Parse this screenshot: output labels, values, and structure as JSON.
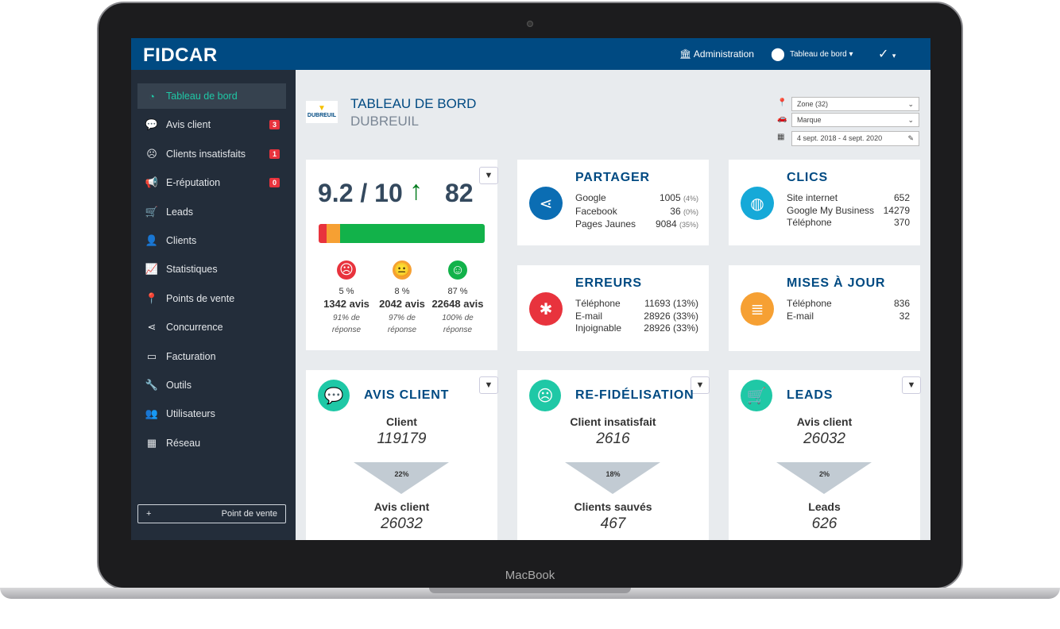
{
  "device": {
    "brand": "MacBook"
  },
  "topbar": {
    "logo": "FIDCAR",
    "admin": "Administration",
    "dashboard_menu": "Tableau de bord ▾",
    "user_menu": "▾"
  },
  "sidebar": {
    "items": [
      {
        "label": "Tableau de bord",
        "icon": "dashboard-icon",
        "glyph": "◔"
      },
      {
        "label": "Avis client",
        "icon": "comment-icon",
        "glyph": "💬",
        "badge": "3"
      },
      {
        "label": "Clients insatisfaits",
        "icon": "frown-icon",
        "glyph": "☹",
        "badge": "1"
      },
      {
        "label": "E-réputation",
        "icon": "bullhorn-icon",
        "glyph": "📢",
        "badge": "0"
      },
      {
        "label": "Leads",
        "icon": "cart-icon",
        "glyph": "🛒"
      },
      {
        "label": "Clients",
        "icon": "user-icon",
        "glyph": "👤"
      },
      {
        "label": "Statistiques",
        "icon": "chart-icon",
        "glyph": "📈"
      },
      {
        "label": "Points de vente",
        "icon": "map-marker-icon",
        "glyph": "📍"
      },
      {
        "label": "Concurrence",
        "icon": "share-icon",
        "glyph": "⋖"
      },
      {
        "label": "Facturation",
        "icon": "credit-card-icon",
        "glyph": "▭"
      },
      {
        "label": "Outils",
        "icon": "wrench-icon",
        "glyph": "🔧"
      },
      {
        "label": "Utilisateurs",
        "icon": "users-icon",
        "glyph": "👥"
      },
      {
        "label": "Réseau",
        "icon": "building-icon",
        "glyph": "▦"
      }
    ],
    "add_button": "Point de vente",
    "add_glyph": "+",
    "updates": "Mises à jour"
  },
  "header": {
    "title": "TABLEAU DE BORD",
    "subtitle": "DUBREUIL",
    "logo_text": "DUBREUIL"
  },
  "filters": {
    "zone": "Zone (32)",
    "brand": "Marque",
    "dates": "4 sept. 2018 - 4 sept. 2020"
  },
  "score": {
    "value": "9.2 / 10",
    "trend": "↑",
    "count": "82",
    "bar": {
      "negative": 5,
      "neutral": 8,
      "positive": 87
    },
    "columns": [
      {
        "pct": "5 %",
        "avis": "1342 avis",
        "resp": "91% de réponse",
        "color": "#e8333d",
        "face": "☹"
      },
      {
        "pct": "8 %",
        "avis": "2042 avis",
        "resp": "97% de réponse",
        "color": "#f6a033",
        "face": "😐"
      },
      {
        "pct": "87 %",
        "avis": "22648 avis",
        "resp": "100% de réponse",
        "color": "#12b24a",
        "face": "☺"
      }
    ]
  },
  "partager": {
    "title": "PARTAGER",
    "rows": [
      {
        "label": "Google",
        "value": "1005",
        "pct": "(4%)"
      },
      {
        "label": "Facebook",
        "value": "36",
        "pct": "(0%)"
      },
      {
        "label": "Pages Jaunes",
        "value": "9084",
        "pct": "(35%)"
      }
    ]
  },
  "clics": {
    "title": "CLICS",
    "rows": [
      {
        "label": "Site internet",
        "value": "652"
      },
      {
        "label": "Google My Business",
        "value": "14279"
      },
      {
        "label": "Téléphone",
        "value": "370"
      }
    ]
  },
  "erreurs": {
    "title": "ERREURS",
    "rows": [
      {
        "label": "Téléphone",
        "value": "11693 (13%)"
      },
      {
        "label": "E-mail",
        "value": "28926 (33%)"
      },
      {
        "label": "Injoignable",
        "value": "28926 (33%)"
      }
    ]
  },
  "maj": {
    "title": "MISES À JOUR",
    "rows": [
      {
        "label": "Téléphone",
        "value": "836"
      },
      {
        "label": "E-mail",
        "value": "32"
      }
    ]
  },
  "funnels": [
    {
      "title": "AVIS CLIENT",
      "top_label": "Client",
      "top_value": "119179",
      "pct": "22%",
      "bottom_label": "Avis client",
      "bottom_value": "26032",
      "color": "#1fc8a6"
    },
    {
      "title": "RE-FIDÉLISATION",
      "top_label": "Client insatisfait",
      "top_value": "2616",
      "pct": "18%",
      "bottom_label": "Clients sauvés",
      "bottom_value": "467",
      "color": "#1fc8a6"
    },
    {
      "title": "LEADS",
      "top_label": "Avis client",
      "top_value": "26032",
      "pct": "2%",
      "bottom_label": "Leads",
      "bottom_value": "626",
      "color": "#1fc8a6"
    }
  ]
}
